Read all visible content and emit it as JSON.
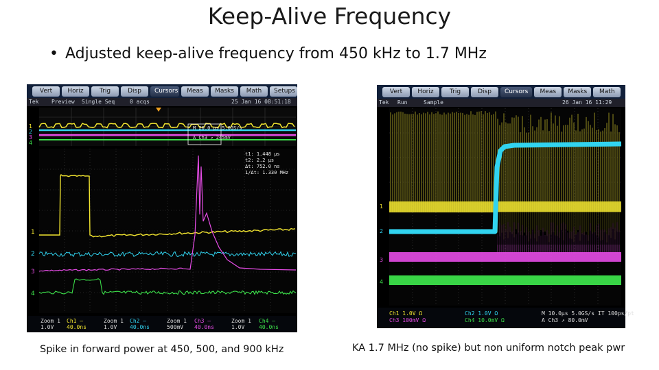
{
  "slide": {
    "title": "Keep-Alive Frequency",
    "bullet": "Adjusted keep-alive frequency from 450 kHz to 1.7 MHz",
    "caption_left": "Spike in forward power at 450, 500, and 900 kHz",
    "caption_right": "KA 1.7 MHz (no spike) but non uniform notch peak pwr"
  },
  "scope_left": {
    "menu": [
      "Vert",
      "Horiz",
      "Trig",
      "Disp",
      "Cursors",
      "Meas",
      "Masks",
      "Math",
      "Setups"
    ],
    "active_menu": "Cursors",
    "status": {
      "brand": "Tek",
      "mode": "Preview",
      "seq": "Single Seq",
      "trig": "0 acqs",
      "date": "25 Jan 16 08:51:18"
    },
    "cursor_readout": [
      "t1: 1.448 μs",
      "t2: 2.2 μs",
      "Δt: 752.0 ns",
      "1/Δt: 1.330 MHz"
    ],
    "overview_readout": [
      "M 20.0 μs 5.0GS/s",
      "A Ch3 ↗ 245mV"
    ],
    "channel_markers": [
      "1",
      "2",
      "3",
      "4"
    ],
    "bottom": [
      [
        "Zoom 1",
        "1.0V"
      ],
      [
        "Ch1 —",
        "40.0ns"
      ],
      [
        "Zoom 1",
        "1.0V"
      ],
      [
        "Ch2 —",
        "40.0ns"
      ],
      [
        "Zoom 1",
        "500mV"
      ],
      [
        "Ch3 —",
        "40.0ns"
      ],
      [
        "Zoom 1",
        "1.0V"
      ],
      [
        "Ch4 —",
        "40.0ns"
      ]
    ]
  },
  "scope_right": {
    "menu": [
      "Vert",
      "Horiz",
      "Trig",
      "Disp",
      "Cursors",
      "Meas",
      "Masks",
      "Math"
    ],
    "active_menu": "Cursors",
    "status": {
      "brand": "Tek",
      "mode": "Run",
      "acq": "Sample",
      "date": "26 Jan 16 11:29"
    },
    "channel_markers": [
      "1",
      "2",
      "3",
      "4"
    ],
    "bottom": [
      [
        "Ch1",
        "1.0V",
        "Ω"
      ],
      [
        "Ch2",
        "1.0V",
        "Ω"
      ],
      [
        "Ch3",
        "100mV",
        "Ω"
      ],
      [
        "Ch4",
        "10.0mV",
        "Ω"
      ],
      [
        "M 10.0μs 5.0GS/s",
        "IT 100ps/pt"
      ],
      [
        "A Ch3 ↗",
        "80.0mV"
      ]
    ]
  },
  "colors": {
    "ch1": "#f2e530",
    "ch2": "#31d4f0",
    "ch3": "#e84de8",
    "ch4": "#3ce04a",
    "grid": "#4a4a4a",
    "accent": "#f0a020"
  }
}
